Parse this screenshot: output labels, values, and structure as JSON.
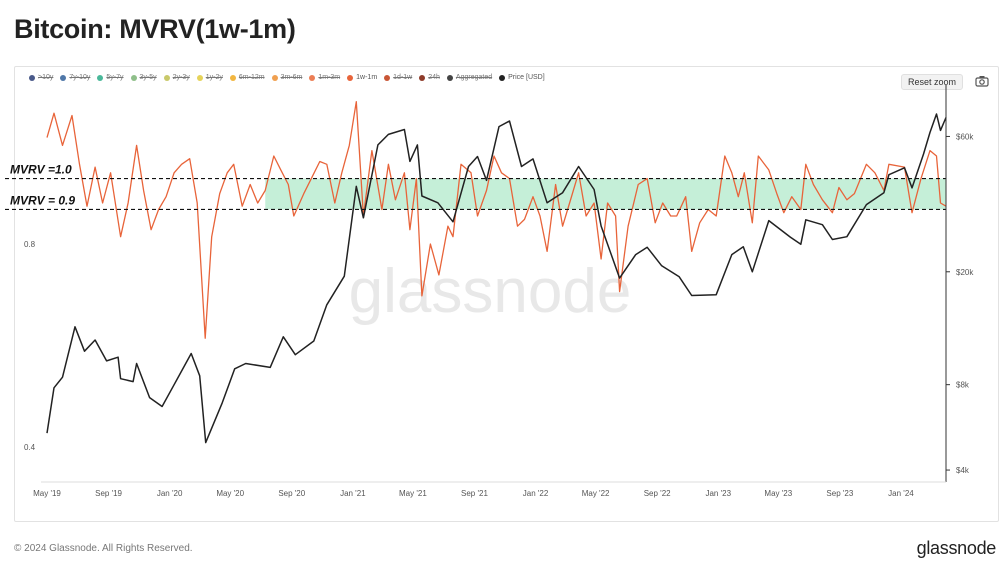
{
  "page": {
    "title": "Bitcoin: MVRV(1w-1m)",
    "copyright": "© 2024 Glassnode. All Rights Reserved.",
    "logo": "glassnode",
    "watermark": "glassnode"
  },
  "toolbar": {
    "reset_zoom": "Reset zoom",
    "camera_icon": "camera-icon"
  },
  "legend": [
    {
      "label": ">10y",
      "color": "#4a5a8a",
      "active": false
    },
    {
      "label": "7y-10y",
      "color": "#4f77a8",
      "active": false
    },
    {
      "label": "5y-7y",
      "color": "#4ab89a",
      "active": false
    },
    {
      "label": "3y-5y",
      "color": "#8fbf8a",
      "active": false
    },
    {
      "label": "2y-3y",
      "color": "#c9c96a",
      "active": false
    },
    {
      "label": "1y-2y",
      "color": "#e6d35a",
      "active": false
    },
    {
      "label": "6m-12m",
      "color": "#f2b640",
      "active": false
    },
    {
      "label": "3m-6m",
      "color": "#f0a050",
      "active": false
    },
    {
      "label": "1m-3m",
      "color": "#ec7e55",
      "active": false
    },
    {
      "label": "1w-1m",
      "color": "#e8643a",
      "active": true
    },
    {
      "label": "1d-1w",
      "color": "#c95636",
      "active": false
    },
    {
      "label": "24h",
      "color": "#8e3b2a",
      "active": false
    },
    {
      "label": "Aggregated",
      "color": "#444444",
      "active": false
    },
    {
      "label": "Price [USD]",
      "color": "#222222",
      "active": true
    }
  ],
  "annotations": {
    "upper_label": "MVRV =1.0",
    "lower_label": "MVRV = 0.9",
    "band_color": "#c5efd8"
  },
  "chart_data": {
    "type": "line",
    "x_tick_labels": [
      "May '19",
      "Sep '19",
      "Jan '20",
      "May '20",
      "Sep '20",
      "Jan '21",
      "May '21",
      "Sep '21",
      "Jan '22",
      "May '22",
      "Sep '22",
      "Jan '23",
      "May '23",
      "Sep '23",
      "Jan '24"
    ],
    "x_range": [
      "2019-05-01",
      "2024-03-31"
    ],
    "y_left": {
      "tick_labels": [
        "0.8",
        "0.4"
      ],
      "scale": "log"
    },
    "y_right": {
      "tick_labels": [
        "$60k",
        "$20k",
        "$8k",
        "$4k"
      ],
      "scale": "log"
    },
    "reference_lines": [
      {
        "label": "MVRV =1.0",
        "value": 1.0
      },
      {
        "label": "MVRV = 0.9",
        "value": 0.9
      }
    ],
    "series": [
      {
        "name": "1w-1m",
        "axis": "left",
        "color": "#e8643a",
        "points": [
          [
            "2019-05-01",
            1.15
          ],
          [
            "2019-05-15",
            1.25
          ],
          [
            "2019-06-01",
            1.12
          ],
          [
            "2019-06-20",
            1.24
          ],
          [
            "2019-07-05",
            1.05
          ],
          [
            "2019-07-20",
            0.91
          ],
          [
            "2019-08-05",
            1.04
          ],
          [
            "2019-08-20",
            0.92
          ],
          [
            "2019-09-05",
            1.02
          ],
          [
            "2019-09-25",
            0.82
          ],
          [
            "2019-10-10",
            0.92
          ],
          [
            "2019-10-27",
            1.12
          ],
          [
            "2019-11-10",
            0.96
          ],
          [
            "2019-11-25",
            0.84
          ],
          [
            "2019-12-10",
            0.9
          ],
          [
            "2019-12-25",
            0.94
          ],
          [
            "2020-01-10",
            1.02
          ],
          [
            "2020-01-25",
            1.05
          ],
          [
            "2020-02-10",
            1.07
          ],
          [
            "2020-02-25",
            0.92
          ],
          [
            "2020-03-12",
            0.58
          ],
          [
            "2020-03-25",
            0.82
          ],
          [
            "2020-04-10",
            0.95
          ],
          [
            "2020-04-25",
            1.02
          ],
          [
            "2020-05-08",
            1.05
          ],
          [
            "2020-05-25",
            0.91
          ],
          [
            "2020-06-10",
            0.98
          ],
          [
            "2020-06-25",
            0.92
          ],
          [
            "2020-07-10",
            0.96
          ],
          [
            "2020-07-27",
            1.08
          ],
          [
            "2020-08-10",
            1.03
          ],
          [
            "2020-08-25",
            0.98
          ],
          [
            "2020-09-05",
            0.88
          ],
          [
            "2020-09-25",
            0.95
          ],
          [
            "2020-10-10",
            1.0
          ],
          [
            "2020-10-27",
            1.06
          ],
          [
            "2020-11-10",
            1.05
          ],
          [
            "2020-11-26",
            0.92
          ],
          [
            "2020-12-10",
            1.02
          ],
          [
            "2020-12-25",
            1.12
          ],
          [
            "2021-01-08",
            1.3
          ],
          [
            "2021-01-22",
            0.88
          ],
          [
            "2021-02-08",
            1.1
          ],
          [
            "2021-02-28",
            0.9
          ],
          [
            "2021-03-13",
            1.05
          ],
          [
            "2021-03-27",
            0.93
          ],
          [
            "2021-04-14",
            1.02
          ],
          [
            "2021-04-25",
            0.84
          ],
          [
            "2021-05-08",
            1.0
          ],
          [
            "2021-05-19",
            0.67
          ],
          [
            "2021-06-05",
            0.8
          ],
          [
            "2021-06-22",
            0.72
          ],
          [
            "2021-07-10",
            0.85
          ],
          [
            "2021-07-20",
            0.82
          ],
          [
            "2021-08-05",
            1.05
          ],
          [
            "2021-08-25",
            1.02
          ],
          [
            "2021-09-07",
            0.88
          ],
          [
            "2021-09-25",
            0.96
          ],
          [
            "2021-10-10",
            1.08
          ],
          [
            "2021-10-25",
            1.02
          ],
          [
            "2021-11-10",
            1.0
          ],
          [
            "2021-11-26",
            0.85
          ],
          [
            "2021-12-10",
            0.87
          ],
          [
            "2021-12-27",
            0.94
          ],
          [
            "2022-01-10",
            0.88
          ],
          [
            "2022-01-24",
            0.78
          ],
          [
            "2022-02-10",
            0.98
          ],
          [
            "2022-02-24",
            0.85
          ],
          [
            "2022-03-10",
            0.92
          ],
          [
            "2022-03-28",
            1.02
          ],
          [
            "2022-04-12",
            0.88
          ],
          [
            "2022-04-28",
            0.92
          ],
          [
            "2022-05-12",
            0.76
          ],
          [
            "2022-05-25",
            0.92
          ],
          [
            "2022-06-10",
            0.88
          ],
          [
            "2022-06-18",
            0.68
          ],
          [
            "2022-07-05",
            0.85
          ],
          [
            "2022-07-25",
            0.98
          ],
          [
            "2022-08-12",
            1.0
          ],
          [
            "2022-08-28",
            0.86
          ],
          [
            "2022-09-12",
            0.92
          ],
          [
            "2022-09-28",
            0.88
          ],
          [
            "2022-10-10",
            0.88
          ],
          [
            "2022-10-28",
            0.94
          ],
          [
            "2022-11-09",
            0.78
          ],
          [
            "2022-11-25",
            0.86
          ],
          [
            "2022-12-12",
            0.9
          ],
          [
            "2022-12-28",
            0.88
          ],
          [
            "2023-01-14",
            1.08
          ],
          [
            "2023-01-28",
            1.02
          ],
          [
            "2023-02-10",
            0.94
          ],
          [
            "2023-02-22",
            1.02
          ],
          [
            "2023-03-10",
            0.86
          ],
          [
            "2023-03-22",
            1.08
          ],
          [
            "2023-04-12",
            1.03
          ],
          [
            "2023-04-28",
            0.95
          ],
          [
            "2023-05-12",
            0.89
          ],
          [
            "2023-05-28",
            0.94
          ],
          [
            "2023-06-15",
            0.9
          ],
          [
            "2023-06-25",
            1.05
          ],
          [
            "2023-07-10",
            0.98
          ],
          [
            "2023-07-28",
            0.93
          ],
          [
            "2023-08-17",
            0.89
          ],
          [
            "2023-08-30",
            0.97
          ],
          [
            "2023-09-15",
            0.93
          ],
          [
            "2023-09-30",
            0.95
          ],
          [
            "2023-10-24",
            1.05
          ],
          [
            "2023-11-10",
            1.02
          ],
          [
            "2023-11-28",
            0.96
          ],
          [
            "2023-12-08",
            1.05
          ],
          [
            "2024-01-08",
            1.04
          ],
          [
            "2024-01-23",
            0.89
          ],
          [
            "2024-02-10",
            1.0
          ],
          [
            "2024-02-28",
            1.1
          ],
          [
            "2024-03-12",
            1.08
          ],
          [
            "2024-03-20",
            0.92
          ],
          [
            "2024-03-31",
            0.91
          ]
        ]
      },
      {
        "name": "Price [USD]",
        "axis": "right",
        "color": "#222222",
        "points": [
          [
            "2019-05-01",
            5400
          ],
          [
            "2019-05-15",
            7800
          ],
          [
            "2019-06-01",
            8500
          ],
          [
            "2019-06-26",
            12800
          ],
          [
            "2019-07-15",
            10500
          ],
          [
            "2019-08-05",
            11500
          ],
          [
            "2019-08-28",
            9700
          ],
          [
            "2019-09-20",
            10000
          ],
          [
            "2019-09-25",
            8400
          ],
          [
            "2019-10-20",
            8200
          ],
          [
            "2019-10-27",
            9500
          ],
          [
            "2019-11-22",
            7200
          ],
          [
            "2019-12-17",
            6700
          ],
          [
            "2020-01-10",
            8000
          ],
          [
            "2020-02-13",
            10300
          ],
          [
            "2020-03-01",
            8600
          ],
          [
            "2020-03-13",
            5000
          ],
          [
            "2020-04-15",
            6900
          ],
          [
            "2020-05-10",
            9100
          ],
          [
            "2020-06-01",
            9500
          ],
          [
            "2020-07-20",
            9200
          ],
          [
            "2020-08-15",
            11800
          ],
          [
            "2020-09-08",
            10200
          ],
          [
            "2020-10-15",
            11400
          ],
          [
            "2020-11-10",
            15300
          ],
          [
            "2020-12-15",
            19300
          ],
          [
            "2021-01-08",
            40000
          ],
          [
            "2021-01-22",
            31000
          ],
          [
            "2021-02-20",
            56000
          ],
          [
            "2021-03-13",
            61000
          ],
          [
            "2021-04-14",
            63500
          ],
          [
            "2021-04-25",
            49000
          ],
          [
            "2021-05-10",
            56000
          ],
          [
            "2021-05-19",
            37000
          ],
          [
            "2021-06-20",
            35000
          ],
          [
            "2021-07-20",
            30000
          ],
          [
            "2021-08-20",
            47000
          ],
          [
            "2021-09-07",
            51000
          ],
          [
            "2021-09-25",
            42000
          ],
          [
            "2021-10-20",
            65000
          ],
          [
            "2021-11-10",
            68000
          ],
          [
            "2021-12-04",
            47000
          ],
          [
            "2021-12-27",
            50000
          ],
          [
            "2022-01-24",
            35000
          ],
          [
            "2022-02-24",
            38000
          ],
          [
            "2022-03-28",
            47000
          ],
          [
            "2022-04-28",
            39000
          ],
          [
            "2022-05-12",
            29000
          ],
          [
            "2022-06-18",
            19000
          ],
          [
            "2022-07-20",
            23000
          ],
          [
            "2022-08-12",
            24400
          ],
          [
            "2022-09-10",
            21000
          ],
          [
            "2022-10-15",
            19200
          ],
          [
            "2022-11-09",
            16500
          ],
          [
            "2022-12-28",
            16600
          ],
          [
            "2023-01-28",
            23000
          ],
          [
            "2023-02-20",
            24500
          ],
          [
            "2023-03-10",
            20000
          ],
          [
            "2023-04-12",
            30300
          ],
          [
            "2023-05-25",
            26500
          ],
          [
            "2023-06-15",
            25000
          ],
          [
            "2023-06-25",
            30500
          ],
          [
            "2023-07-28",
            29300
          ],
          [
            "2023-08-17",
            26000
          ],
          [
            "2023-09-15",
            26600
          ],
          [
            "2023-10-24",
            34500
          ],
          [
            "2023-11-28",
            38000
          ],
          [
            "2023-12-08",
            44000
          ],
          [
            "2024-01-08",
            46500
          ],
          [
            "2024-01-23",
            39500
          ],
          [
            "2024-02-15",
            52000
          ],
          [
            "2024-02-28",
            62000
          ],
          [
            "2024-03-12",
            72000
          ],
          [
            "2024-03-20",
            63000
          ],
          [
            "2024-03-31",
            70000
          ]
        ]
      }
    ]
  }
}
